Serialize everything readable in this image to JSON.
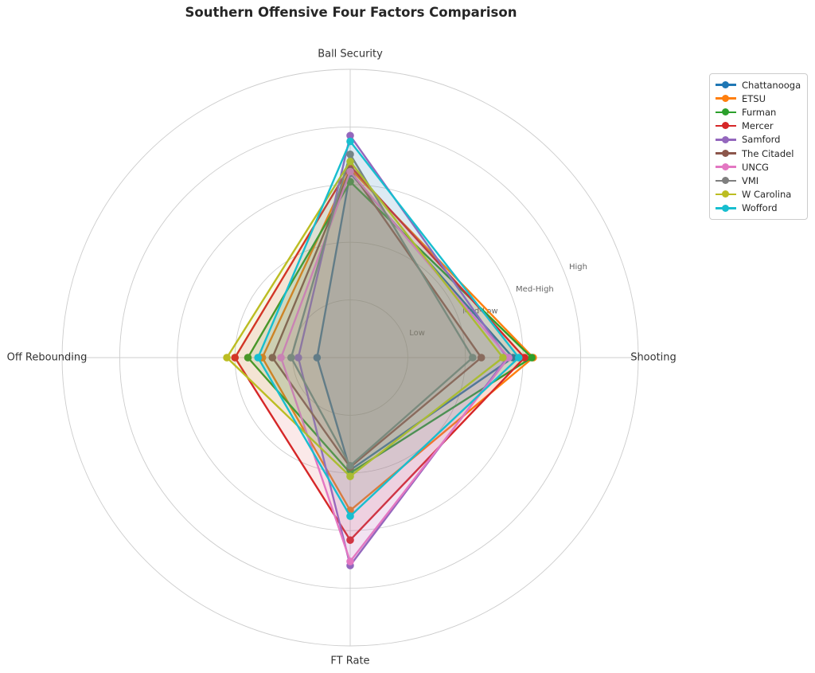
{
  "title": "Southern Offensive Four Factors Comparison",
  "chart_data": {
    "type": "radar",
    "title": "Southern Offensive Four Factors Comparison",
    "categories": [
      "Ball Security",
      "Shooting",
      "FT Rate",
      "Off Rebounding"
    ],
    "category_angles_deg": [
      90,
      0,
      270,
      180
    ],
    "radial_ticks": [
      0.2,
      0.4,
      0.6,
      0.8
    ],
    "radial_tick_labels": [
      "Low",
      "Med-Low",
      "Med-High",
      "High"
    ],
    "rmax": 1.0,
    "rlabel_angle_deg": 22.5,
    "grid": true,
    "legend_position": "upper right",
    "grid_color": "#cccccc",
    "axis_label_color": "#333333",
    "tick_label_color": "#666666",
    "title_color": "#262626",
    "series": [
      {
        "name": "Chattanooga",
        "color": "#1f77b4",
        "values": [
          0.64,
          0.565,
          0.39,
          0.115
        ]
      },
      {
        "name": "ETSU",
        "color": "#ff7f0e",
        "values": [
          0.655,
          0.635,
          0.53,
          0.305
        ]
      },
      {
        "name": "Furman",
        "color": "#2ca02c",
        "values": [
          0.61,
          0.63,
          0.4,
          0.355
        ]
      },
      {
        "name": "Mercer",
        "color": "#d62728",
        "values": [
          0.665,
          0.605,
          0.633,
          0.4
        ]
      },
      {
        "name": "Samford",
        "color": "#9467bd",
        "values": [
          0.77,
          0.545,
          0.721,
          0.18
        ]
      },
      {
        "name": "The Citadel",
        "color": "#8c564b",
        "values": [
          0.65,
          0.455,
          0.38,
          0.27
        ]
      },
      {
        "name": "UNCG",
        "color": "#e377c2",
        "values": [
          0.645,
          0.55,
          0.707,
          0.24
        ]
      },
      {
        "name": "VMI",
        "color": "#7f7f7f",
        "values": [
          0.705,
          0.425,
          0.375,
          0.205
        ]
      },
      {
        "name": "W Carolina",
        "color": "#bcbd22",
        "values": [
          0.68,
          0.53,
          0.412,
          0.428
        ]
      },
      {
        "name": "Wofford",
        "color": "#17becf",
        "values": [
          0.75,
          0.585,
          0.55,
          0.32
        ]
      }
    ]
  }
}
